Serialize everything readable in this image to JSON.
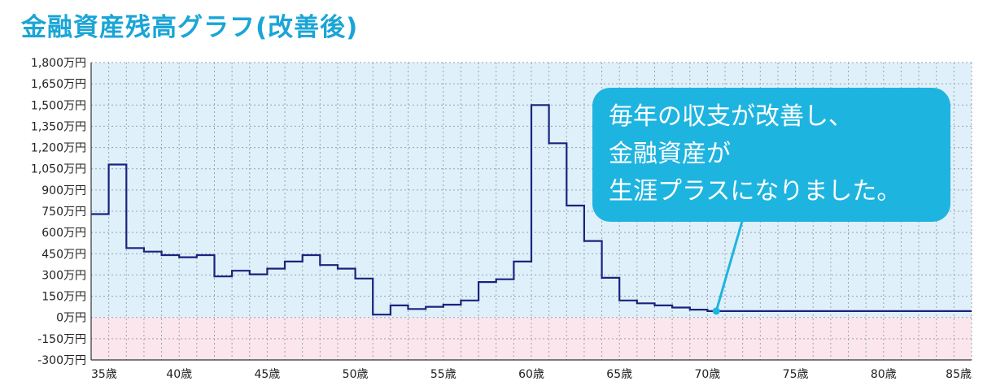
{
  "chart_data": {
    "type": "line",
    "title": "金融資産残高グラフ(改善後)",
    "xlabel": "",
    "ylabel": "",
    "x": [
      35,
      36,
      37,
      38,
      39,
      40,
      41,
      42,
      43,
      44,
      45,
      46,
      47,
      48,
      49,
      50,
      51,
      52,
      53,
      54,
      55,
      56,
      57,
      58,
      59,
      60,
      61,
      62,
      63,
      64,
      65,
      66,
      67,
      68,
      69,
      70,
      71,
      72,
      73,
      74,
      75,
      76,
      77,
      78,
      79,
      80,
      81,
      82,
      83,
      84,
      85
    ],
    "values": [
      730,
      1080,
      490,
      465,
      440,
      425,
      440,
      290,
      330,
      305,
      345,
      395,
      440,
      370,
      345,
      275,
      20,
      85,
      60,
      75,
      90,
      120,
      250,
      270,
      395,
      1500,
      1230,
      790,
      540,
      280,
      120,
      100,
      85,
      70,
      55,
      45,
      45,
      45,
      45,
      45,
      45,
      45,
      45,
      45,
      45,
      45,
      45,
      45,
      45,
      45,
      45
    ],
    "xlim": [
      35,
      85
    ],
    "ylim": [
      -300,
      1800
    ],
    "x_ticks": [
      35,
      40,
      45,
      50,
      55,
      60,
      65,
      70,
      75,
      80,
      85
    ],
    "x_tick_labels": [
      "35歳",
      "40歳",
      "45歳",
      "50歳",
      "55歳",
      "60歳",
      "65歳",
      "70歳",
      "75歳",
      "80歳",
      "85歳"
    ],
    "y_ticks": [
      1800,
      1650,
      1500,
      1350,
      1200,
      1050,
      900,
      750,
      600,
      450,
      300,
      150,
      0,
      -150,
      -300
    ],
    "y_tick_labels": [
      "1,800万円",
      "1,650万円",
      "1,500万円",
      "1,350万円",
      "1,200万円",
      "1,050万円",
      "900万円",
      "750万円",
      "600万円",
      "450万円",
      "300万円",
      "150万円",
      "0万円",
      "-150万円",
      "-300万円"
    ],
    "grid": true,
    "annotation": {
      "lines": [
        "毎年の収支が改善し、",
        "金融資産が",
        "生涯プラスになりました。"
      ],
      "point_x": 70.5,
      "point_y": 45
    },
    "colors": {
      "title": "#1aa5d6",
      "line": "#1a237e",
      "positive_bg": "#dff0fa",
      "negative_bg": "#fbe6ee",
      "grid": "#9aa3ad",
      "callout": "#1eb4e0"
    }
  }
}
